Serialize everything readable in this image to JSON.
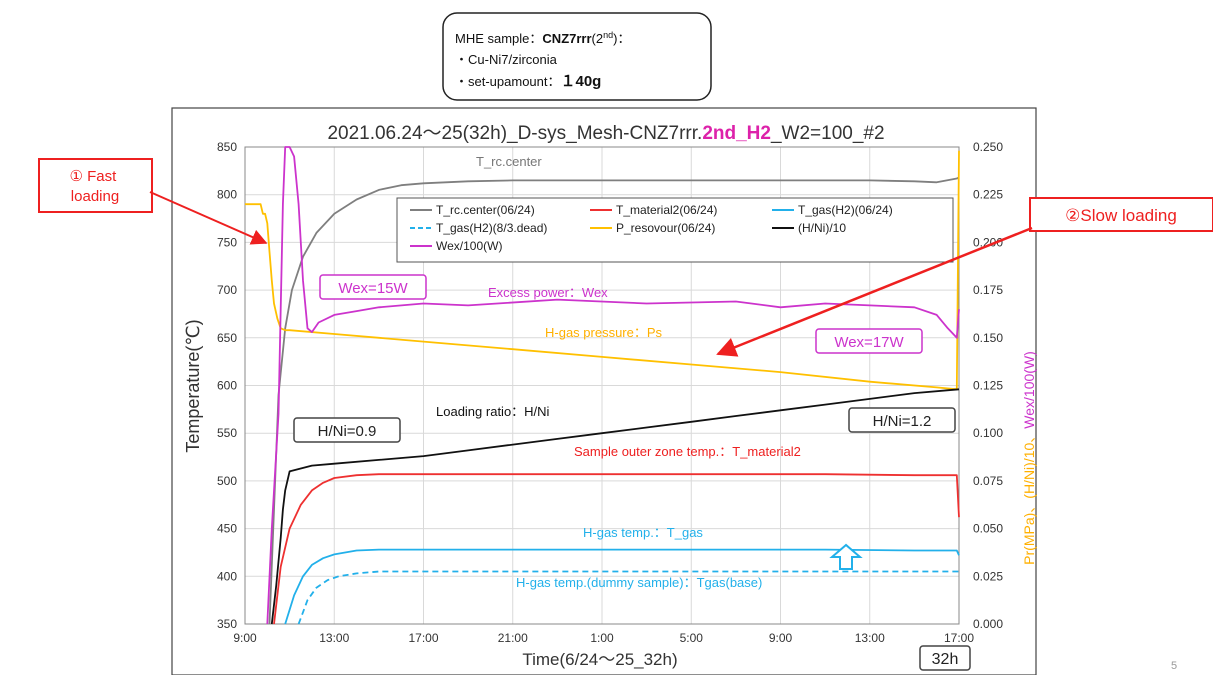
{
  "sample_box": {
    "line1_prefix": "MHE sample：",
    "line1_bold": "CNZ7rrr",
    "line1_suffix": "(2",
    "line1_sup": "nd",
    "line1_end": ")：",
    "line2": "・Cu-Ni7/zirconia",
    "line3_prefix": "・set-upamount：",
    "line3_bold": "１40g"
  },
  "page_number": "5",
  "chart_data": {
    "type": "line",
    "title": {
      "part1": "2021.06.24～25(32h)_D-sys_Mesh-CNZ7rrr.",
      "part2": "2nd_H2",
      "part3": "_W2=100_#2"
    },
    "xlabel": "Time(6/24～25_32h)",
    "ylabel_left": "Temperature(℃)",
    "ylabel_right_part1": "Pr(MPa)、(H/Ni)/10、",
    "ylabel_right_part2": "Wex/100(W)",
    "x_ticks": [
      "9:00",
      "13:00",
      "17:00",
      "21:00",
      "1:00",
      "5:00",
      "9:00",
      "13:00",
      "17:00"
    ],
    "x_range_hours": [
      0,
      32
    ],
    "ylim_left": [
      350,
      850
    ],
    "y_ticks_left": [
      "850",
      "800",
      "750",
      "700",
      "650",
      "600",
      "550",
      "500",
      "450",
      "400",
      "350"
    ],
    "ylim_right": [
      0.0,
      0.25
    ],
    "y_ticks_right": [
      "0.250",
      "0.225",
      "0.200",
      "0.175",
      "0.150",
      "0.125",
      "0.100",
      "0.075",
      "0.050",
      "0.025",
      "0.000"
    ],
    "grid": true,
    "legend_position": "top-center",
    "legend": [
      {
        "name": "T_rc.center(06/24)",
        "color": "#7f7f7f",
        "dash": false
      },
      {
        "name": "T_material2(06/24)",
        "color": "#ee3030",
        "dash": false
      },
      {
        "name": "T_gas(H2)(06/24)",
        "color": "#22b0ea",
        "dash": false
      },
      {
        "name": "T_gas(H2)(8/3.dead)",
        "color": "#22b0ea",
        "dash": true
      },
      {
        "name": "P_resovour(06/24)",
        "color": "#ffc000",
        "dash": false
      },
      {
        "name": "(H/Ni)/10",
        "color": "#111111",
        "dash": false
      },
      {
        "name": "Wex/100(W)",
        "color": "#cc33cc",
        "dash": false
      }
    ],
    "series": [
      {
        "key": "t_rc",
        "axis": "left",
        "color": "#7f7f7f",
        "dash": false,
        "x": [
          1.1,
          1.3,
          1.5,
          1.8,
          2.1,
          2.6,
          3.2,
          4,
          5,
          6,
          7,
          8,
          10,
          12,
          14,
          16,
          18,
          20,
          22,
          24,
          26,
          28,
          30,
          31,
          31.9,
          32
        ],
        "y": [
          350,
          470,
          590,
          660,
          700,
          735,
          760,
          780,
          795,
          805,
          810,
          812,
          814,
          815,
          815,
          815,
          815,
          815,
          815,
          815,
          815,
          815,
          814,
          813,
          817,
          818
        ]
      },
      {
        "key": "t_material2",
        "axis": "left",
        "color": "#ee3030",
        "dash": false,
        "x": [
          1.3,
          1.6,
          2,
          2.5,
          3,
          3.5,
          4,
          5,
          6,
          8,
          10,
          14,
          18,
          22,
          26,
          30,
          31.9,
          32
        ],
        "y": [
          350,
          410,
          450,
          475,
          490,
          498,
          503,
          506,
          507,
          507,
          507,
          507,
          507,
          507,
          507,
          506,
          506,
          462
        ]
      },
      {
        "key": "t_gas",
        "axis": "left",
        "color": "#22b0ea",
        "dash": false,
        "x": [
          1.8,
          2.2,
          2.6,
          3,
          3.5,
          4,
          5,
          6,
          7,
          8,
          10,
          14,
          18,
          22,
          26,
          30,
          31.9,
          32
        ],
        "y": [
          350,
          380,
          400,
          412,
          419,
          423,
          427,
          428,
          428,
          428,
          428,
          428,
          428,
          428,
          428,
          427,
          427,
          422
        ]
      },
      {
        "key": "t_gas_dead",
        "axis": "left",
        "color": "#22b0ea",
        "dash": true,
        "x": [
          2.4,
          2.8,
          3.2,
          3.7,
          4.2,
          5,
          6,
          7,
          8,
          10,
          14,
          20,
          26,
          30,
          32
        ],
        "y": [
          350,
          375,
          388,
          396,
          400,
          403,
          405,
          405,
          405,
          405,
          405,
          405,
          405,
          405,
          405
        ]
      },
      {
        "key": "p_res",
        "axis": "right",
        "color": "#ffc000",
        "dash": false,
        "x": [
          0,
          0.7,
          0.8,
          0.9,
          1.0,
          1.1,
          1.2,
          1.3,
          1.45,
          1.6,
          1.8,
          2,
          4,
          8,
          12,
          16,
          20,
          24,
          28,
          31,
          31.9,
          32
        ],
        "y": [
          0.22,
          0.22,
          0.215,
          0.215,
          0.21,
          0.195,
          0.18,
          0.168,
          0.16,
          0.155,
          0.154,
          0.154,
          0.152,
          0.148,
          0.144,
          0.14,
          0.136,
          0.132,
          0.127,
          0.124,
          0.123,
          0.248
        ]
      },
      {
        "key": "h_ni",
        "axis": "right",
        "color": "#111111",
        "dash": false,
        "x": [
          1.2,
          1.4,
          1.6,
          1.7,
          1.8,
          2,
          3,
          4,
          6,
          8,
          10,
          12,
          14,
          16,
          18,
          20,
          22,
          24,
          26,
          28,
          30,
          32
        ],
        "y": [
          0.0,
          0.02,
          0.045,
          0.06,
          0.07,
          0.08,
          0.083,
          0.084,
          0.086,
          0.088,
          0.091,
          0.094,
          0.097,
          0.1,
          0.103,
          0.106,
          0.109,
          0.112,
          0.115,
          0.118,
          0.121,
          0.123
        ]
      },
      {
        "key": "wex",
        "axis": "right",
        "color": "#cc33cc",
        "dash": false,
        "x": [
          1.0,
          1.2,
          1.5,
          1.7,
          1.8,
          2.0,
          2.2,
          2.4,
          2.6,
          2.8,
          3,
          3.3,
          4,
          5,
          6,
          8,
          10,
          14,
          18,
          22,
          24,
          26,
          28,
          30,
          31,
          31.5,
          31.9,
          32
        ],
        "y": [
          0.0,
          0.05,
          0.11,
          0.22,
          0.25,
          0.25,
          0.245,
          0.22,
          0.18,
          0.155,
          0.153,
          0.158,
          0.162,
          0.164,
          0.166,
          0.168,
          0.167,
          0.17,
          0.168,
          0.169,
          0.166,
          0.168,
          0.167,
          0.166,
          0.162,
          0.155,
          0.15,
          0.165
        ]
      }
    ],
    "annotations": {
      "t_rc_label": "T_rc.center",
      "wex_label": "Excess power：Wex",
      "hgas_pressure_label": "H-gas pressure：Ps",
      "loading_ratio_label": "Loading ratio：H/Ni",
      "sample_outer_label": "Sample outer zone temp.：T_material2",
      "hgas_temp_label": "H-gas temp.：T_gas",
      "hgas_dummy_label": "H-gas temp.(dummy sample)：Tgas(base)",
      "wex15": "Wex=15W",
      "wex17": "Wex=17W",
      "hni09": "H/Ni=0.9",
      "hni12": "H/Ni=1.2",
      "duration": "32h",
      "fast_loading": "① Fast loading",
      "slow_loading": "②Slow loading"
    }
  }
}
